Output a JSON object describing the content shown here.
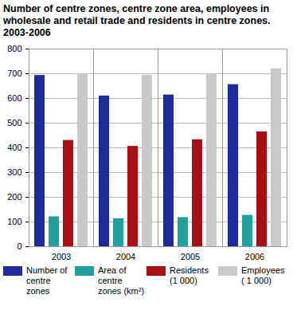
{
  "chart_data": {
    "type": "bar",
    "title": "Number of centre zones, centre zone area, employees in wholesale and retail trade and residents in centre zones. 2003-2006",
    "categories": [
      "2003",
      "2004",
      "2005",
      "2006"
    ],
    "series": [
      {
        "name": "Number of centre zones",
        "color": "#1c2a9c",
        "values": [
          693,
          610,
          614,
          656
        ]
      },
      {
        "name": "Area of centre zones (km²)",
        "color": "#22a0a0",
        "values": [
          121,
          113,
          118,
          127
        ]
      },
      {
        "name": "Residents (1 000)",
        "color": "#a80f12",
        "values": [
          430,
          406,
          433,
          465
        ]
      },
      {
        "name": "Employees ( 1 000)",
        "color": "#c9c9c9",
        "values": [
          700,
          694,
          696,
          720
        ]
      }
    ],
    "ylim": [
      0,
      800
    ],
    "yticks": [
      0,
      100,
      200,
      300,
      400,
      500,
      600,
      700,
      800
    ],
    "grid": true,
    "legend": "bottom"
  }
}
